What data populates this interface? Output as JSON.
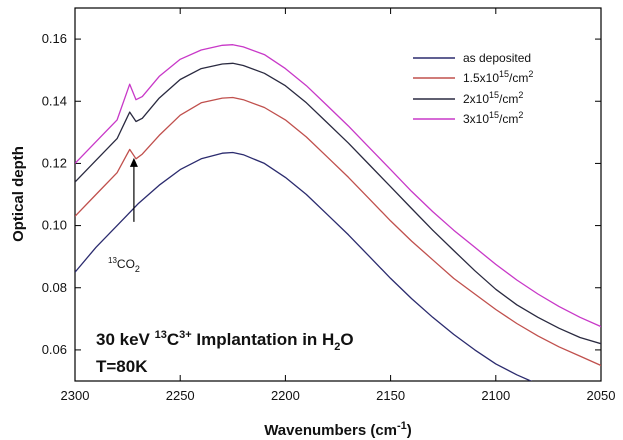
{
  "chart_data": {
    "type": "line",
    "xlabel": "Wavenumbers (cm",
    "xlabel_sup": "-1",
    "xlabel_end": ")",
    "ylabel": "Optical depth",
    "xlim": [
      2300,
      2050
    ],
    "ylim": [
      0.05,
      0.17
    ],
    "x_reversed": true,
    "x_ticks": [
      "2300",
      "2250",
      "2200",
      "2150",
      "2100",
      "2050"
    ],
    "y_ticks": [
      "0.06",
      "0.08",
      "0.10",
      "0.12",
      "0.14",
      "0.16"
    ],
    "legend_position": "top-right",
    "series": [
      {
        "name": "as deposited",
        "color": "#2b2b6e",
        "x": [
          2300,
          2290,
          2280,
          2270,
          2260,
          2250,
          2240,
          2230,
          2225,
          2220,
          2210,
          2200,
          2190,
          2180,
          2170,
          2160,
          2150,
          2140,
          2130,
          2120,
          2110,
          2100,
          2090,
          2080,
          2070,
          2060,
          2050
        ],
        "y": [
          0.085,
          0.093,
          0.1,
          0.107,
          0.113,
          0.118,
          0.1215,
          0.1233,
          0.1235,
          0.1228,
          0.12,
          0.1155,
          0.11,
          0.1035,
          0.097,
          0.09,
          0.083,
          0.0765,
          0.0705,
          0.065,
          0.06,
          0.0555,
          0.052,
          0.049,
          0.046,
          0.044,
          0.042
        ]
      },
      {
        "name": "1.5x10",
        "name_sup": "15",
        "name_end": "/cm",
        "name_sup2": "2",
        "color": "#c0504d",
        "x": [
          2300,
          2290,
          2280,
          2274,
          2271,
          2268,
          2260,
          2250,
          2240,
          2230,
          2225,
          2220,
          2210,
          2200,
          2190,
          2180,
          2170,
          2160,
          2150,
          2140,
          2130,
          2120,
          2110,
          2100,
          2090,
          2080,
          2070,
          2060,
          2050
        ],
        "y": [
          0.103,
          0.11,
          0.117,
          0.1245,
          0.1215,
          0.123,
          0.129,
          0.1355,
          0.1395,
          0.141,
          0.1412,
          0.1405,
          0.138,
          0.134,
          0.1285,
          0.122,
          0.1155,
          0.1085,
          0.1015,
          0.095,
          0.089,
          0.083,
          0.078,
          0.073,
          0.0685,
          0.0645,
          0.061,
          0.058,
          0.055
        ]
      },
      {
        "name": "2x10",
        "name_sup": "15",
        "name_end": "/cm",
        "name_sup2": "2",
        "color": "#2a2a40",
        "x": [
          2300,
          2290,
          2280,
          2274,
          2271,
          2268,
          2260,
          2250,
          2240,
          2230,
          2225,
          2220,
          2210,
          2200,
          2190,
          2180,
          2170,
          2160,
          2150,
          2140,
          2130,
          2120,
          2110,
          2100,
          2090,
          2080,
          2070,
          2060,
          2050
        ],
        "y": [
          0.114,
          0.121,
          0.128,
          0.1365,
          0.1335,
          0.1345,
          0.141,
          0.147,
          0.1505,
          0.152,
          0.1522,
          0.1515,
          0.149,
          0.145,
          0.1395,
          0.133,
          0.1265,
          0.1195,
          0.1125,
          0.1055,
          0.0985,
          0.092,
          0.0855,
          0.0795,
          0.0745,
          0.0705,
          0.067,
          0.064,
          0.062
        ]
      },
      {
        "name": "3x10",
        "name_sup": "15",
        "name_end": "/cm",
        "name_sup2": "2",
        "color": "#c838c8",
        "x": [
          2300,
          2290,
          2280,
          2274,
          2271,
          2268,
          2260,
          2250,
          2240,
          2230,
          2225,
          2220,
          2210,
          2200,
          2190,
          2180,
          2170,
          2160,
          2150,
          2140,
          2130,
          2120,
          2110,
          2100,
          2090,
          2080,
          2070,
          2060,
          2050
        ],
        "y": [
          0.12,
          0.127,
          0.134,
          0.1455,
          0.1405,
          0.1415,
          0.148,
          0.1535,
          0.1565,
          0.158,
          0.1582,
          0.1575,
          0.155,
          0.1505,
          0.145,
          0.1385,
          0.132,
          0.125,
          0.118,
          0.111,
          0.1045,
          0.0985,
          0.093,
          0.0875,
          0.0825,
          0.078,
          0.074,
          0.0705,
          0.0675
        ]
      }
    ],
    "annotations": {
      "peak_label": "CO",
      "peak_label_presup": "13",
      "peak_label_sub": "2",
      "arrow_x": 2272,
      "arrow_from_y": 0.1012,
      "arrow_to_y": 0.1218,
      "line1_a": "30 keV ",
      "line1_sup": "13",
      "line1_b": "C",
      "line1_sup2": "3+",
      "line1_c": " Implantation in H",
      "line1_sub": "2",
      "line1_d": "O",
      "line2": "T=80K"
    }
  }
}
